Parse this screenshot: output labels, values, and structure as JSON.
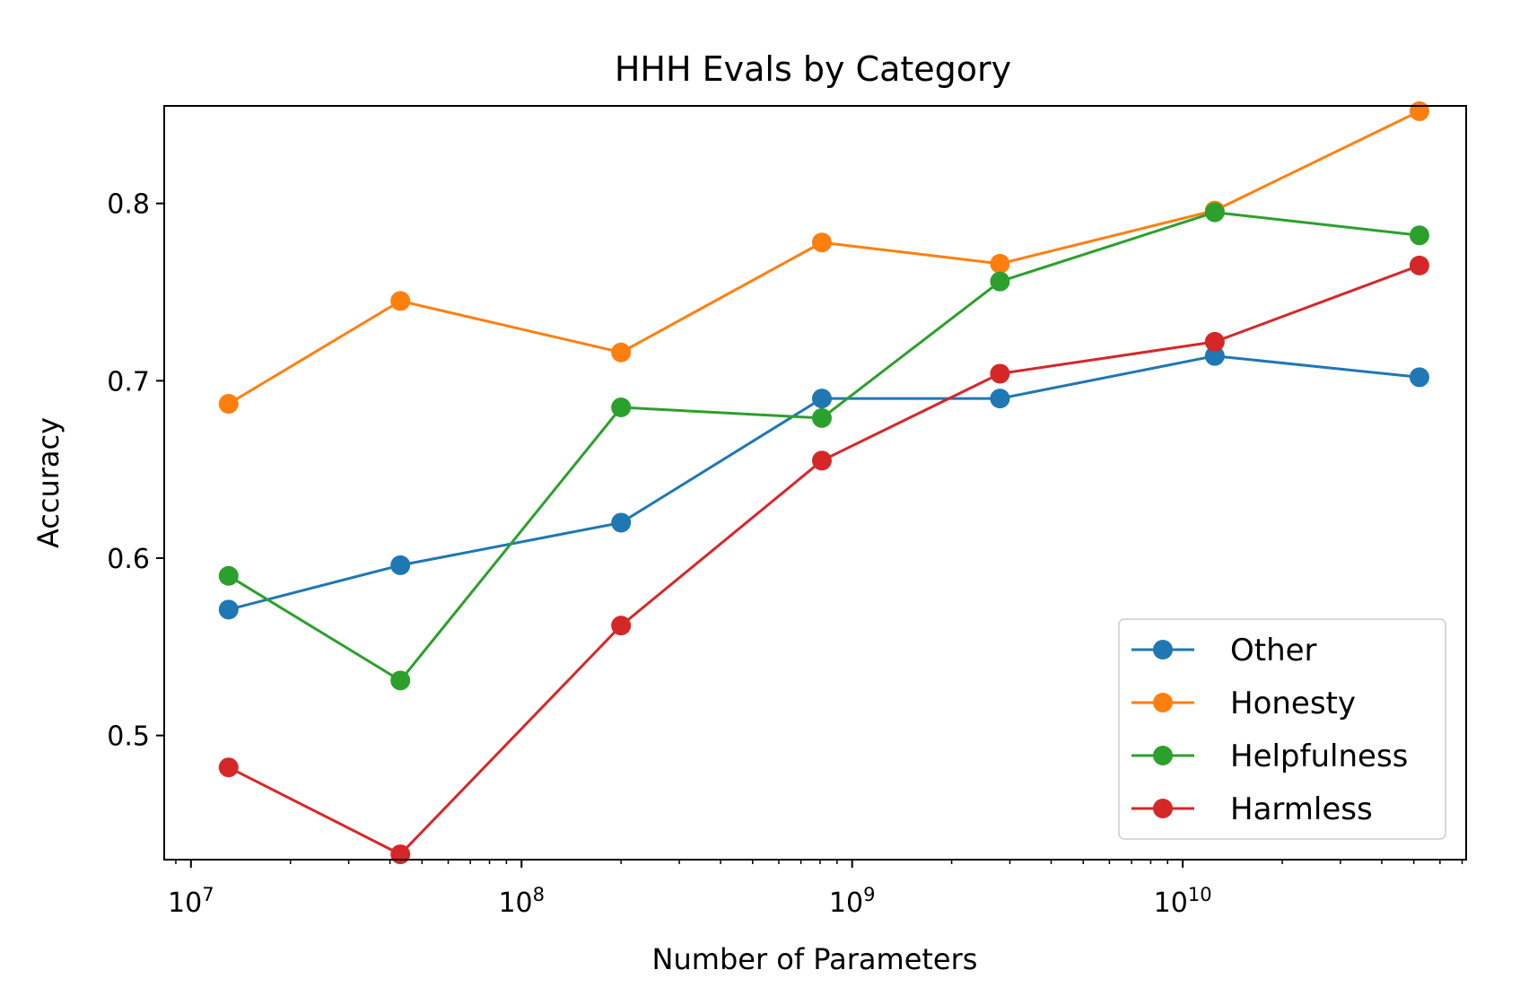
{
  "chart_data": {
    "type": "line",
    "title": "HHH Evals by Category",
    "xlabel": "Number of Parameters",
    "ylabel": "Accuracy",
    "xscale": "log",
    "x": [
      13000000,
      43000000,
      200000000,
      810000000,
      2800000000,
      12500000000,
      52000000000
    ],
    "xlim": [
      8300000,
      72000000000
    ],
    "ylim": [
      0.43,
      0.855
    ],
    "xticks": [
      {
        "value": 10000000,
        "base": "10",
        "exp": "7"
      },
      {
        "value": 100000000,
        "base": "10",
        "exp": "8"
      },
      {
        "value": 1000000000,
        "base": "10",
        "exp": "9"
      },
      {
        "value": 10000000000,
        "base": "10",
        "exp": "10"
      }
    ],
    "yticks": [
      {
        "value": 0.5,
        "label": "0.5"
      },
      {
        "value": 0.6,
        "label": "0.6"
      },
      {
        "value": 0.7,
        "label": "0.7"
      },
      {
        "value": 0.8,
        "label": "0.8"
      }
    ],
    "grid": false,
    "legend_position": "lower-right",
    "series": [
      {
        "name": "Other",
        "color": "#1f77b4",
        "values": [
          0.571,
          0.596,
          0.62,
          0.69,
          0.69,
          0.714,
          0.702
        ]
      },
      {
        "name": "Honesty",
        "color": "#ff7f0e",
        "values": [
          0.687,
          0.745,
          0.716,
          0.778,
          0.766,
          0.796,
          0.852
        ]
      },
      {
        "name": "Helpfulness",
        "color": "#2ca02c",
        "values": [
          0.59,
          0.531,
          0.685,
          0.679,
          0.756,
          0.795,
          0.782
        ]
      },
      {
        "name": "Harmless",
        "color": "#d62728",
        "values": [
          0.482,
          0.433,
          0.562,
          0.655,
          0.704,
          0.722,
          0.765
        ]
      }
    ]
  }
}
